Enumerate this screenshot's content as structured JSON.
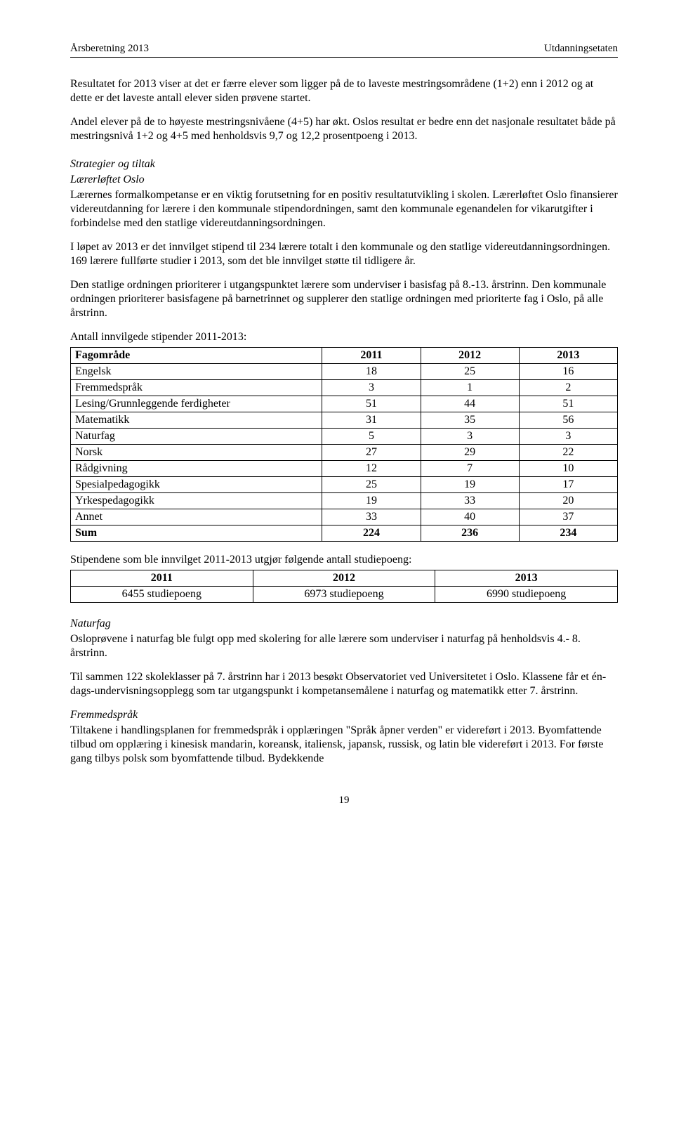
{
  "header": {
    "left": "Årsberetning 2013",
    "right": "Utdanningsetaten"
  },
  "paragraphs": {
    "p1": "Resultatet for 2013 viser at det er færre elever som ligger på de to laveste mestringsområdene (1+2) enn i 2012 og at dette er det laveste antall elever siden prøvene startet.",
    "p2": "Andel elever på de to høyeste mestringsnivåene (4+5) har økt. Oslos resultat er bedre enn det nasjonale resultatet både på mestringsnivå 1+2 og 4+5 med henholdsvis 9,7 og 12,2 prosentpoeng i 2013.",
    "strat_head": "Strategier og tiltak",
    "laer_head": "Lærerløftet Oslo",
    "p3": "Lærernes formalkompetanse er en viktig forutsetning for en positiv resultatutvikling i skolen. Lærerløftet Oslo finansierer videreutdanning for lærere i den kommunale stipendordningen, samt den kommunale egenandelen for vikarutgifter i forbindelse med den statlige videreutdanningsordningen.",
    "p4": "I løpet av 2013 er det innvilget stipend til 234 lærere totalt i den kommunale og den statlige videreutdanningsordningen. 169 lærere fullførte studier i 2013, som det ble innvilget støtte til tidligere år.",
    "p5": "Den statlige ordningen prioriterer i utgangspunktet lærere som underviser i basisfag på 8.-13. årstrinn. Den kommunale ordningen prioriterer basisfagene på barnetrinnet og supplerer den statlige ordningen med prioriterte fag i Oslo, på alle årstrinn.",
    "t1_caption": "Antall innvilgede stipender 2011-2013:",
    "t2_caption": "Stipendene som ble innvilget 2011-2013 utgjør følgende antall studiepoeng:",
    "natur_head": "Naturfag",
    "p6": "Osloprøvene i naturfag ble fulgt opp med skolering for alle lærere som underviser i naturfag på henholdsvis 4.- 8. årstrinn.",
    "p7": "Til sammen 122 skoleklasser på 7. årstrinn har i 2013 besøkt Observatoriet ved Universitetet i Oslo. Klassene får et én-dags-undervisningsopplegg som tar utgangspunkt i kompetansemålene i naturfag og matematikk etter 7. årstrinn.",
    "frem_head": "Fremmedspråk",
    "p8": "Tiltakene i handlingsplanen for fremmedspråk i opplæringen \"Språk åpner verden\" er videreført i 2013. Byomfattende tilbud om opplæring i kinesisk mandarin, koreansk, italiensk, japansk, russisk, og latin ble videreført i 2013. For første gang tilbys polsk som byomfattende tilbud. Bydekkende"
  },
  "table1": {
    "columns": [
      "Fagområde",
      "2011",
      "2012",
      "2013"
    ],
    "rows": [
      [
        "Engelsk",
        "18",
        "25",
        "16"
      ],
      [
        "Fremmedspråk",
        "3",
        "1",
        "2"
      ],
      [
        "Lesing/Grunnleggende ferdigheter",
        "51",
        "44",
        "51"
      ],
      [
        "Matematikk",
        "31",
        "35",
        "56"
      ],
      [
        "Naturfag",
        "5",
        "3",
        "3"
      ],
      [
        "Norsk",
        "27",
        "29",
        "22"
      ],
      [
        "Rådgivning",
        "12",
        "7",
        "10"
      ],
      [
        "Spesialpedagogikk",
        "25",
        "19",
        "17"
      ],
      [
        "Yrkespedagogikk",
        "19",
        "33",
        "20"
      ],
      [
        "Annet",
        "33",
        "40",
        "37"
      ]
    ],
    "sum": [
      "Sum",
      "224",
      "236",
      "234"
    ]
  },
  "table2": {
    "columns": [
      "2011",
      "2012",
      "2013"
    ],
    "rows": [
      [
        "6455 studiepoeng",
        "6973 studiepoeng",
        "6990 studiepoeng"
      ]
    ]
  },
  "page_number": "19"
}
